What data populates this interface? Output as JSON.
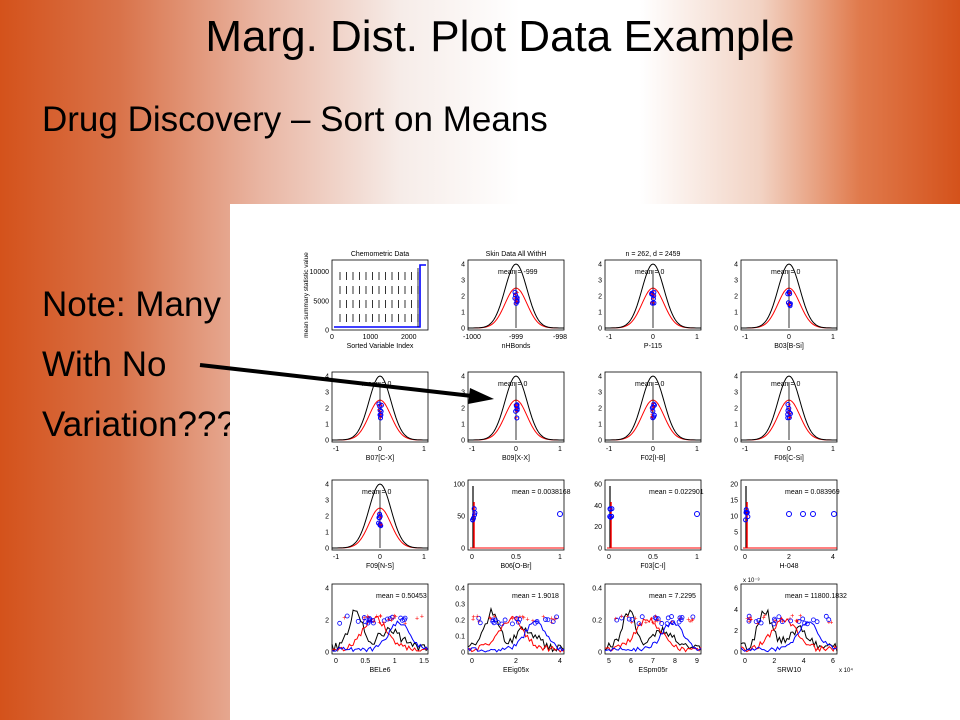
{
  "slide": {
    "title": "Marg. Dist. Plot Data Example",
    "subtitle": "Drug Discovery – Sort on Means",
    "note_lines": [
      "Note: Many",
      "With No",
      "Variation???"
    ]
  },
  "colors": {
    "black": "#000000",
    "red": "#ff0000",
    "blue": "#0000ff"
  },
  "chart_data": {
    "type": "grid of marginal distribution plots",
    "summary_panel": {
      "title": "Chemometric Data",
      "xlabel": "Sorted Variable Index",
      "ylabel": "mean summary statistic value",
      "xticks": [
        "0",
        "1000",
        "2000"
      ],
      "yticks": [
        "0",
        "5000",
        "10000"
      ],
      "xlim": [
        0,
        2500
      ],
      "ylim": [
        0,
        12000
      ]
    },
    "panels": [
      {
        "xlabel": "nHBonds",
        "mean": "mean = -999",
        "xticks": [
          "-1000",
          "-999",
          "-998"
        ],
        "yticks": [
          "0",
          "1",
          "2",
          "3",
          "4"
        ],
        "kind": "gauss",
        "title": "Skin Data All WithH"
      },
      {
        "xlabel": "P-115",
        "mean": "mean = 0",
        "xticks": [
          "-1",
          "0",
          "1"
        ],
        "yticks": [
          "0",
          "1",
          "2",
          "3",
          "4"
        ],
        "kind": "gauss",
        "title": "n = 262, d = 2459"
      },
      {
        "xlabel": "B03[B-Si]",
        "mean": "mean = 0",
        "xticks": [
          "-1",
          "0",
          "1"
        ],
        "yticks": [
          "0",
          "1",
          "2",
          "3",
          "4"
        ],
        "kind": "gauss"
      },
      {
        "xlabel": "B07[C-X]",
        "mean": "mean = 0",
        "xticks": [
          "-1",
          "0",
          "1"
        ],
        "yticks": [
          "0",
          "1",
          "2",
          "3",
          "4"
        ],
        "kind": "gauss"
      },
      {
        "xlabel": "B09[X-X]",
        "mean": "mean = 0",
        "xticks": [
          "-1",
          "0",
          "1"
        ],
        "yticks": [
          "0",
          "1",
          "2",
          "3",
          "4"
        ],
        "kind": "gauss"
      },
      {
        "xlabel": "F02[I-B]",
        "mean": "mean = 0",
        "xticks": [
          "-1",
          "0",
          "1"
        ],
        "yticks": [
          "0",
          "1",
          "2",
          "3",
          "4"
        ],
        "kind": "gauss"
      },
      {
        "xlabel": "F06[C-Si]",
        "mean": "mean = 0",
        "xticks": [
          "-1",
          "0",
          "1"
        ],
        "yticks": [
          "0",
          "1",
          "2",
          "3",
          "4"
        ],
        "kind": "gauss"
      },
      {
        "xlabel": "F09[N-S]",
        "mean": "mean = 0",
        "xticks": [
          "-1",
          "0",
          "1"
        ],
        "yticks": [
          "0",
          "1",
          "2",
          "3",
          "4"
        ],
        "kind": "gauss"
      },
      {
        "xlabel": "B06[O-Br]",
        "mean": "mean = 0.0038168",
        "xticks": [
          "0",
          "0.5",
          "1"
        ],
        "yticks": [
          "0",
          "50",
          "100"
        ],
        "kind": "spike"
      },
      {
        "xlabel": "F03[C-I]",
        "mean": "mean = 0.022901",
        "xticks": [
          "0",
          "0.5",
          "1"
        ],
        "yticks": [
          "0",
          "20",
          "40",
          "60"
        ],
        "kind": "spike"
      },
      {
        "xlabel": "H-048",
        "mean": "mean = 0.083969",
        "xticks": [
          "0",
          "2",
          "4"
        ],
        "yticks": [
          "0",
          "5",
          "10",
          "15",
          "20"
        ],
        "kind": "spike"
      },
      {
        "xlabel": "BELe6",
        "mean": "mean = 0.50453",
        "xticks": [
          "0",
          "0.5",
          "1",
          "1.5"
        ],
        "yticks": [
          "0",
          "2",
          "4"
        ],
        "kind": "spread"
      },
      {
        "xlabel": "EEig05x",
        "mean": "mean = 1.9018",
        "xticks": [
          "0",
          "2",
          "4"
        ],
        "yticks": [
          "0",
          "0.1",
          "0.2",
          "0.3",
          "0.4"
        ],
        "kind": "spread"
      },
      {
        "xlabel": "ESpm05r",
        "mean": "mean = 7.2295",
        "xticks": [
          "5",
          "6",
          "7",
          "8",
          "9"
        ],
        "yticks": [
          "0",
          "0.2",
          "0.4"
        ],
        "kind": "spread"
      },
      {
        "xlabel": "SRW10",
        "mean": "mean = 11800.1832",
        "xticks": [
          "0",
          "2",
          "4",
          "6"
        ],
        "yticks": [
          "0",
          "2",
          "4",
          "6"
        ],
        "kind": "spread",
        "yexp": "x 10⁻³",
        "xexp": "x 10⁴"
      }
    ]
  }
}
